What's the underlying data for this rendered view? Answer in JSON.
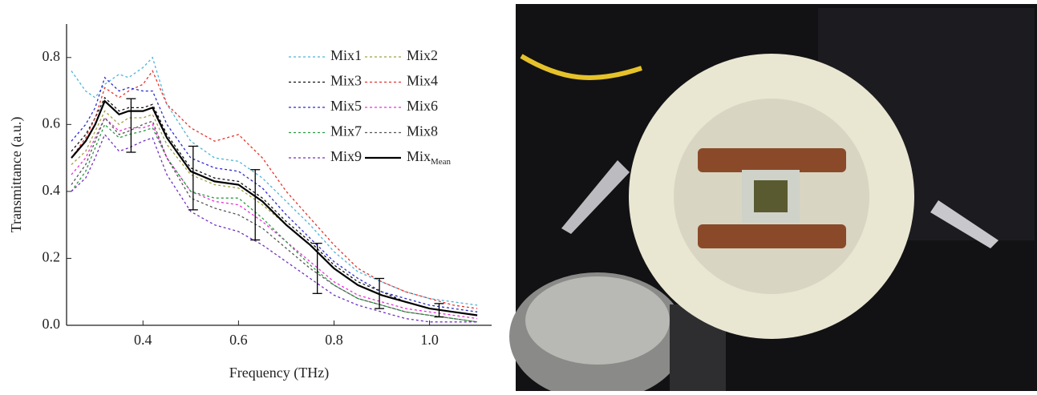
{
  "chart_data": {
    "type": "line",
    "x_label": "Frequency (THz)",
    "y_label": "Transmittance (a.u.)",
    "xlim": [
      0.24,
      1.13
    ],
    "ylim": [
      0,
      0.9
    ],
    "xticks": [
      0.4,
      0.6,
      0.8,
      {
        "value": 1,
        "label": "1.0"
      }
    ],
    "yticks": [
      {
        "value": 0,
        "label": "0.0"
      },
      0.2,
      0.4,
      0.6,
      0.8
    ],
    "legend": "top-right",
    "x": [
      0.25,
      0.28,
      0.3,
      0.32,
      0.35,
      0.37,
      0.4,
      0.42,
      0.45,
      0.5,
      0.55,
      0.6,
      0.65,
      0.7,
      0.75,
      0.8,
      0.85,
      0.9,
      0.95,
      1.0,
      1.05,
      1.1
    ],
    "series": [
      {
        "name": "Mix1",
        "color": "#4fb3d9",
        "dashed": true,
        "values": [
          0.76,
          0.7,
          0.68,
          0.72,
          0.75,
          0.74,
          0.77,
          0.8,
          0.66,
          0.55,
          0.5,
          0.49,
          0.44,
          0.37,
          0.3,
          0.22,
          0.16,
          0.13,
          0.1,
          0.08,
          0.07,
          0.06
        ]
      },
      {
        "name": "Mix2",
        "color": "#a0a040",
        "dashed": true,
        "values": [
          0.48,
          0.52,
          0.58,
          0.64,
          0.6,
          0.62,
          0.62,
          0.63,
          0.54,
          0.45,
          0.42,
          0.41,
          0.36,
          0.3,
          0.24,
          0.17,
          0.12,
          0.09,
          0.07,
          0.05,
          0.04,
          0.03
        ]
      },
      {
        "name": "Mix3",
        "color": "#111111",
        "dashed": true,
        "values": [
          0.52,
          0.57,
          0.62,
          0.68,
          0.64,
          0.65,
          0.65,
          0.66,
          0.57,
          0.47,
          0.44,
          0.43,
          0.38,
          0.31,
          0.25,
          0.18,
          0.13,
          0.1,
          0.07,
          0.05,
          0.04,
          0.03
        ]
      },
      {
        "name": "Mix4",
        "color": "#e8322c",
        "dashed": true,
        "values": [
          0.5,
          0.56,
          0.62,
          0.71,
          0.68,
          0.7,
          0.72,
          0.76,
          0.66,
          0.59,
          0.55,
          0.57,
          0.5,
          0.4,
          0.32,
          0.24,
          0.17,
          0.13,
          0.1,
          0.08,
          0.06,
          0.05
        ]
      },
      {
        "name": "Mix5",
        "color": "#2a2ad0",
        "dashed": true,
        "values": [
          0.55,
          0.6,
          0.65,
          0.74,
          0.7,
          0.71,
          0.7,
          0.7,
          0.6,
          0.5,
          0.47,
          0.46,
          0.41,
          0.33,
          0.26,
          0.19,
          0.14,
          0.1,
          0.08,
          0.06,
          0.05,
          0.04
        ]
      },
      {
        "name": "Mix6",
        "color": "#e830d8",
        "dashed": true,
        "values": [
          0.45,
          0.5,
          0.56,
          0.62,
          0.58,
          0.59,
          0.59,
          0.6,
          0.5,
          0.4,
          0.37,
          0.36,
          0.31,
          0.25,
          0.19,
          0.13,
          0.09,
          0.07,
          0.05,
          0.04,
          0.03,
          0.02
        ]
      },
      {
        "name": "Mix7",
        "color": "#2a9a40",
        "dashed": true,
        "values": [
          0.4,
          0.46,
          0.53,
          0.6,
          0.56,
          0.57,
          0.58,
          0.59,
          0.5,
          0.4,
          0.38,
          0.38,
          0.32,
          0.25,
          0.18,
          0.12,
          0.08,
          0.06,
          0.04,
          0.03,
          0.02,
          0.01
        ]
      },
      {
        "name": "Mix8",
        "color": "#555555",
        "dashed": true,
        "values": [
          0.42,
          0.48,
          0.55,
          0.62,
          0.57,
          0.58,
          0.6,
          0.61,
          0.5,
          0.38,
          0.35,
          0.33,
          0.29,
          0.23,
          0.17,
          0.12,
          0.08,
          0.06,
          0.04,
          0.03,
          0.02,
          0.01
        ]
      },
      {
        "name": "Mix9",
        "color": "#7030c0",
        "dashed": true,
        "values": [
          0.4,
          0.44,
          0.5,
          0.57,
          0.52,
          0.53,
          0.55,
          0.56,
          0.45,
          0.34,
          0.3,
          0.28,
          0.24,
          0.19,
          0.14,
          0.09,
          0.06,
          0.04,
          0.02,
          0.01,
          0.01,
          0.01
        ]
      },
      {
        "name": "Mix",
        "subscript": "Mean",
        "color": "#000000",
        "dashed": false,
        "values": [
          0.5,
          0.55,
          0.6,
          0.67,
          0.63,
          0.64,
          0.64,
          0.65,
          0.56,
          0.46,
          0.43,
          0.42,
          0.37,
          0.3,
          0.24,
          0.17,
          0.12,
          0.09,
          0.07,
          0.05,
          0.04,
          0.03
        ]
      }
    ],
    "error_bars": {
      "x": [
        0.375,
        0.505,
        0.635,
        0.765,
        0.895,
        1.02
      ],
      "values": [
        0.597,
        0.44,
        0.36,
        0.17,
        0.095,
        0.045
      ],
      "errors": [
        0.08,
        0.095,
        0.105,
        0.075,
        0.045,
        0.02
      ],
      "color": "#000000"
    }
  }
}
